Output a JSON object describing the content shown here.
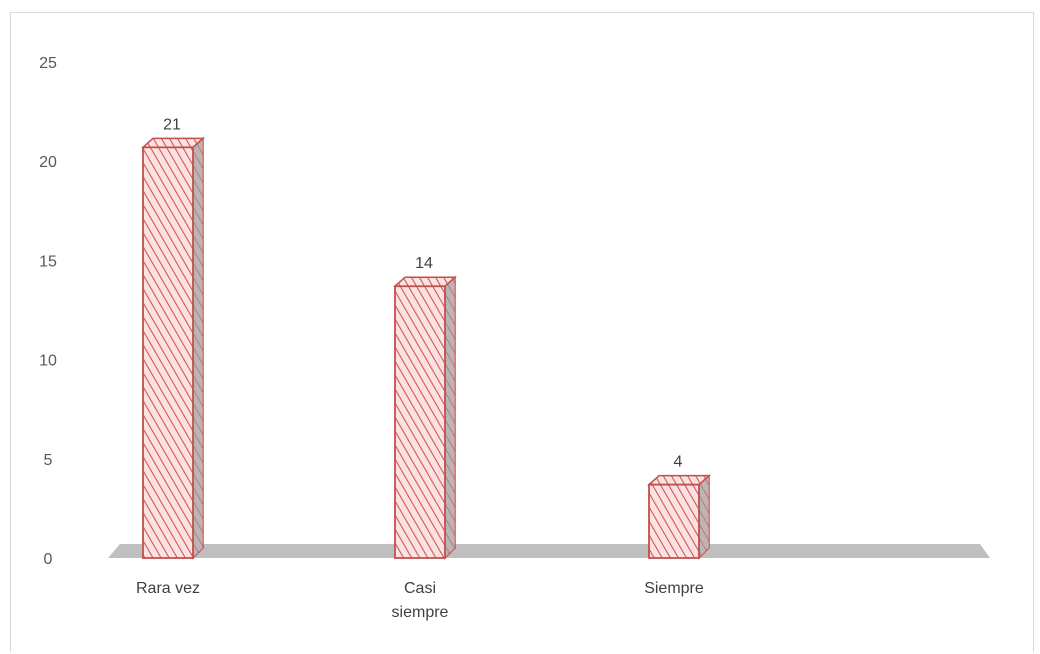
{
  "chart_data": {
    "type": "bar",
    "categories": [
      "Rara vez",
      "Casi siempre",
      "Siempre"
    ],
    "category_label_lines": [
      [
        "Rara vez"
      ],
      [
        "Casi",
        "siempre"
      ],
      [
        "Siempre"
      ]
    ],
    "values": [
      21,
      14,
      4
    ],
    "data_labels": [
      "21",
      "14",
      "4"
    ],
    "y_ticks": [
      "0",
      "5",
      "10",
      "15",
      "20",
      "25"
    ],
    "ylim": [
      0,
      25
    ],
    "title": "",
    "xlabel": "",
    "ylabel": "",
    "grid": false,
    "legend": "none",
    "three_d": true,
    "colors": {
      "bar_fill": "#fbe3e3",
      "bar_hatch": "#d9534f",
      "bar_edge": "#c0504d",
      "bar_side": "#9c9c9c",
      "floor": "#bfbfbf"
    }
  }
}
